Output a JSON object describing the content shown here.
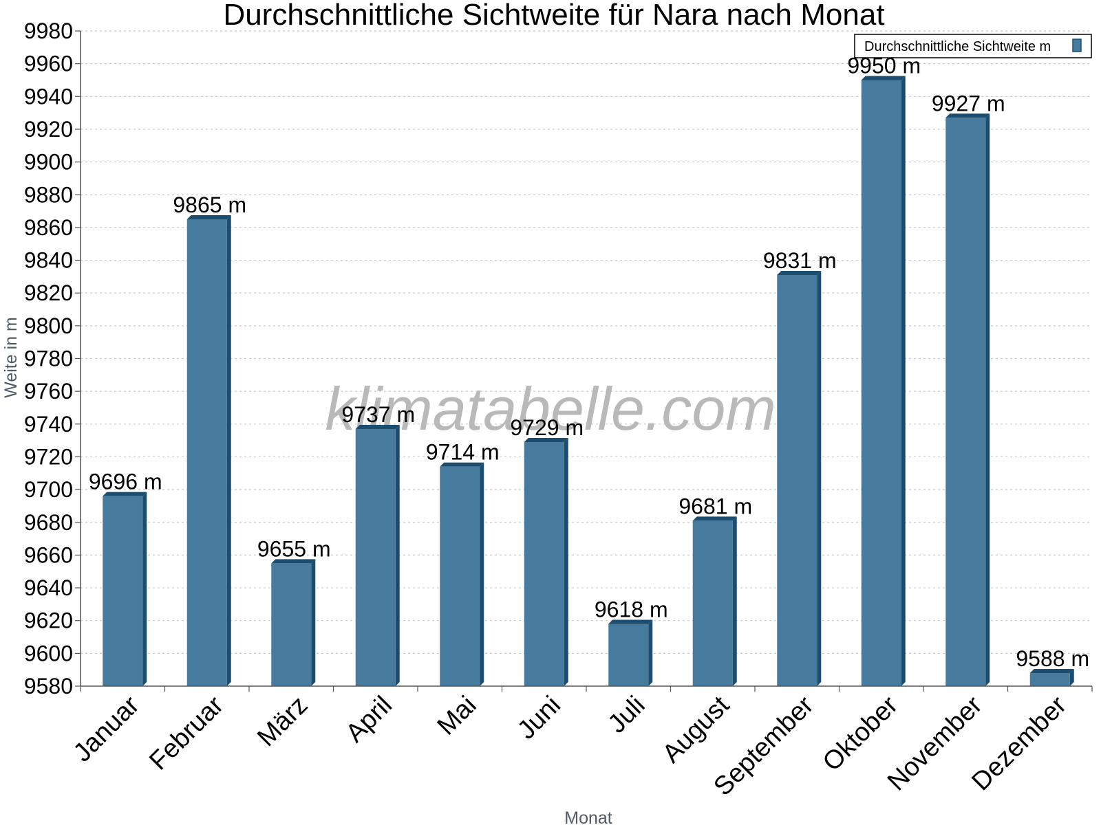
{
  "chart_data": {
    "type": "bar",
    "title": "Durchschnittliche Sichtweite für Nara nach Monat",
    "xlabel": "Monat",
    "ylabel": "Weite in m",
    "categories": [
      "Januar",
      "Februar",
      "März",
      "April",
      "Mai",
      "Juni",
      "Juli",
      "August",
      "September",
      "Oktober",
      "November",
      "Dezember"
    ],
    "series": [
      {
        "name": "Durchschnittliche Sichtweite m",
        "values": [
          9696,
          9865,
          9655,
          9737,
          9714,
          9729,
          9618,
          9681,
          9831,
          9950,
          9927,
          9588
        ],
        "labels": [
          "9696 m",
          "9865 m",
          "9655 m",
          "9737 m",
          "9714 m",
          "9729 m",
          "9618 m",
          "9681 m",
          "9831 m",
          "9950 m",
          "9927 m",
          "9588 m"
        ]
      }
    ],
    "ylim": [
      9580,
      9980
    ],
    "yticks": [
      "9580",
      "9600",
      "9620",
      "9640",
      "9660",
      "9680",
      "9700",
      "9720",
      "9740",
      "9760",
      "9780",
      "9800",
      "9820",
      "9840",
      "9860",
      "9880",
      "9900",
      "9920",
      "9940",
      "9960",
      "9980"
    ],
    "grid": true,
    "legend": "top-right",
    "colors": {
      "bar": "#467b9e",
      "bar_dark": "#1d4d6e",
      "grid": "#c8c8c8"
    }
  },
  "watermark": "klimatabelle.com"
}
